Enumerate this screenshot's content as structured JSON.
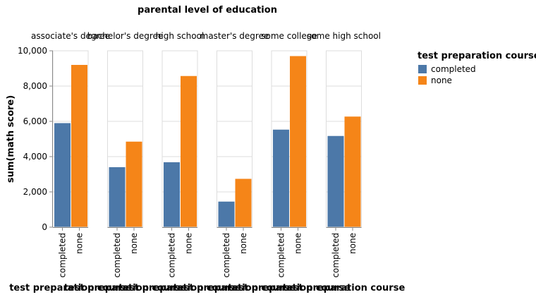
{
  "chart_data": {
    "type": "bar",
    "title": "parental level of education",
    "ylabel": "sum(math score)",
    "xlabel": "test preparation course",
    "ylim": [
      0,
      10000
    ],
    "yticks": [
      "0",
      "2,000",
      "4,000",
      "6,000",
      "8,000",
      "10,000"
    ],
    "ytick_values": [
      0,
      2000,
      4000,
      6000,
      8000,
      10000
    ],
    "grid": true,
    "legend_title": "test preparation course",
    "legend_position": "top-right",
    "categories": [
      "completed",
      "none"
    ],
    "series_colors": {
      "completed": "#4c78a8",
      "none": "#f58518"
    },
    "facets": [
      {
        "label": "associate's degree",
        "values": [
          5900,
          9200
        ]
      },
      {
        "label": "bachelor's degree",
        "values": [
          3400,
          4850
        ]
      },
      {
        "label": "high school",
        "values": [
          3680,
          8570
        ]
      },
      {
        "label": "master's degree",
        "values": [
          1450,
          2740
        ]
      },
      {
        "label": "some college",
        "values": [
          5530,
          9700
        ]
      },
      {
        "label": "some high school",
        "values": [
          5170,
          6270
        ]
      }
    ]
  }
}
